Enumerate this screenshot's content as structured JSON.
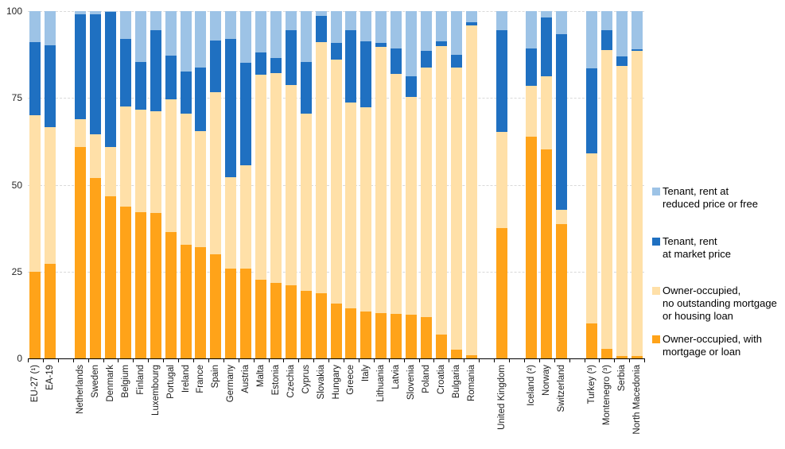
{
  "chart_data": {
    "type": "bar",
    "subtype": "stacked-vertical",
    "unit": "% of population",
    "ylim": [
      0,
      100
    ],
    "yticks": [
      0,
      25,
      50,
      75,
      100
    ],
    "grid": "horizontal-dashed",
    "legend_position": "right",
    "series": [
      {
        "name": "Owner-occupied, with mortgage or loan",
        "color": "#FFA319"
      },
      {
        "name": "Owner-occupied, no outstanding mortgage or housing loan",
        "color": "#FFE0A8"
      },
      {
        "name": "Tenant, rent at market price",
        "color": "#1F70C1"
      },
      {
        "name": "Tenant, rent at reduced price or free",
        "color": "#9DC3E6"
      }
    ],
    "bars": [
      {
        "label": "EU-27 (¹)",
        "values": [
          25.0,
          45.0,
          21.0,
          9.0
        ]
      },
      {
        "label": "EA-19",
        "values": [
          27.2,
          39.3,
          23.7,
          9.8
        ]
      },
      {
        "gap": true
      },
      {
        "label": "Netherlands",
        "values": [
          60.8,
          8.1,
          30.1,
          1.0
        ]
      },
      {
        "label": "Sweden",
        "values": [
          51.9,
          12.7,
          34.4,
          1.0
        ]
      },
      {
        "label": "Denmark",
        "values": [
          46.7,
          14.1,
          39.0,
          0.2
        ]
      },
      {
        "label": "Belgium",
        "values": [
          43.7,
          28.9,
          19.4,
          8.0
        ]
      },
      {
        "label": "Finland",
        "values": [
          42.2,
          29.4,
          13.7,
          14.7
        ]
      },
      {
        "label": "Luxembourg",
        "values": [
          41.9,
          29.3,
          23.4,
          5.4
        ]
      },
      {
        "label": "Portugal",
        "values": [
          36.5,
          38.2,
          12.5,
          12.8
        ]
      },
      {
        "label": "Ireland",
        "values": [
          32.7,
          37.7,
          12.2,
          17.4
        ]
      },
      {
        "label": "France",
        "values": [
          32.1,
          33.4,
          18.2,
          16.3
        ]
      },
      {
        "label": "Spain",
        "values": [
          29.9,
          46.7,
          15.0,
          8.4
        ]
      },
      {
        "label": "Germany",
        "values": [
          25.8,
          26.3,
          40.0,
          7.9
        ]
      },
      {
        "label": "Austria",
        "values": [
          25.8,
          29.7,
          29.6,
          14.9
        ]
      },
      {
        "label": "Malta",
        "values": [
          22.6,
          59.1,
          6.3,
          12.0
        ]
      },
      {
        "label": "Estonia",
        "values": [
          21.8,
          60.4,
          4.3,
          13.5
        ]
      },
      {
        "label": "Czechia",
        "values": [
          21.0,
          57.8,
          15.8,
          5.4
        ]
      },
      {
        "label": "Cyprus",
        "values": [
          19.4,
          51.0,
          14.9,
          14.7
        ]
      },
      {
        "label": "Slovakia",
        "values": [
          18.8,
          72.3,
          7.5,
          1.4
        ]
      },
      {
        "label": "Hungary",
        "values": [
          15.8,
          70.2,
          4.8,
          9.2
        ]
      },
      {
        "label": "Greece",
        "values": [
          14.4,
          59.2,
          21.0,
          5.4
        ]
      },
      {
        "label": "Italy",
        "values": [
          13.5,
          58.8,
          19.0,
          8.7
        ]
      },
      {
        "label": "Lithuania",
        "values": [
          13.1,
          76.7,
          1.0,
          9.2
        ]
      },
      {
        "label": "Latvia",
        "values": [
          12.8,
          69.1,
          7.4,
          10.7
        ]
      },
      {
        "label": "Slovenia",
        "values": [
          12.5,
          62.7,
          6.1,
          18.7
        ]
      },
      {
        "label": "Poland",
        "values": [
          11.8,
          71.9,
          4.8,
          11.5
        ]
      },
      {
        "label": "Croatia",
        "values": [
          6.8,
          83.2,
          1.3,
          8.7
        ]
      },
      {
        "label": "Bulgaria",
        "values": [
          2.5,
          81.2,
          3.8,
          12.5
        ]
      },
      {
        "label": "Romania",
        "values": [
          1.0,
          94.9,
          1.0,
          3.1
        ]
      },
      {
        "gap": true
      },
      {
        "label": "United Kingdom",
        "values": [
          37.6,
          27.7,
          29.3,
          5.4
        ]
      },
      {
        "gap": true
      },
      {
        "label": "Iceland (²)",
        "values": [
          63.8,
          14.8,
          10.7,
          10.7
        ]
      },
      {
        "label": "Norway",
        "values": [
          60.3,
          20.9,
          16.9,
          1.9
        ]
      },
      {
        "label": "Switzerland",
        "values": [
          38.6,
          4.3,
          50.5,
          6.6
        ]
      },
      {
        "gap": true
      },
      {
        "label": "Turkey (³)",
        "values": [
          10.0,
          49.0,
          24.6,
          16.4
        ]
      },
      {
        "label": "Montenegro (³)",
        "values": [
          2.7,
          86.2,
          5.5,
          5.6
        ]
      },
      {
        "label": "Serbia",
        "values": [
          0.8,
          83.4,
          2.8,
          13.0
        ]
      },
      {
        "label": "North Macedonia",
        "values": [
          0.6,
          87.9,
          0.6,
          10.9
        ]
      }
    ]
  },
  "legend": [
    {
      "label": "Tenant, rent at\nreduced price or free",
      "color": "#9DC3E6"
    },
    {
      "label": "Tenant, rent\nat market price",
      "color": "#1F70C1"
    },
    {
      "label": "Owner-occupied,\nno outstanding mortgage\nor housing loan",
      "color": "#FFE0A8"
    },
    {
      "label": "Owner-occupied, with\nmortgage or loan",
      "color": "#FFA319"
    }
  ],
  "axis_colors": {
    "gridline": "#d9d9d9",
    "axis_line": "#000000",
    "tick_label": "#262626"
  }
}
